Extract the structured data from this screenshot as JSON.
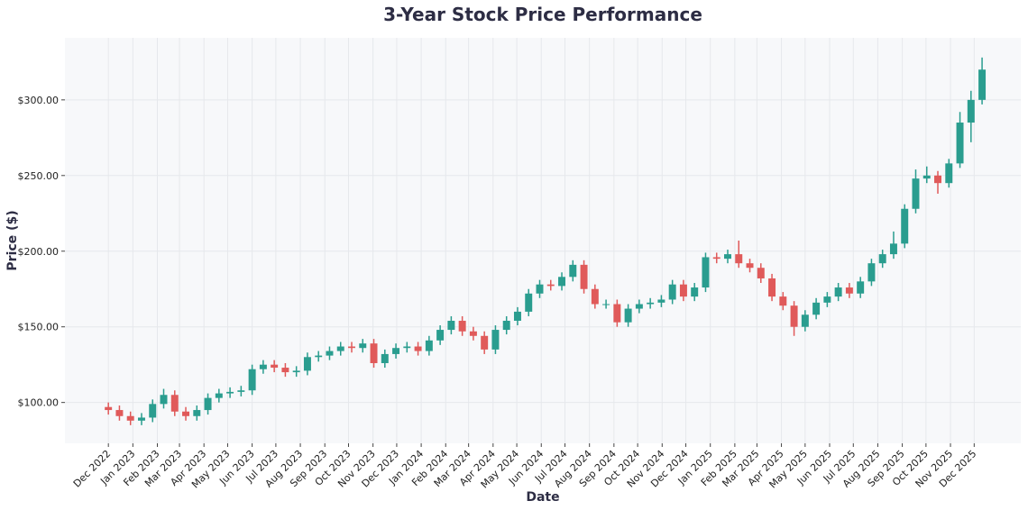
{
  "chart_data": {
    "type": "candlestick",
    "title": "3-Year Stock Price Performance",
    "xlabel": "Date",
    "ylabel": "Price ($)",
    "x": [
      0,
      14,
      28,
      42,
      56,
      70,
      84,
      98,
      112,
      126,
      140,
      154,
      168,
      182,
      196,
      210,
      224,
      238,
      252,
      266,
      280,
      294,
      308,
      322,
      336,
      350,
      364,
      378,
      392,
      406,
      420,
      434,
      448,
      462,
      476,
      490,
      504,
      518,
      532,
      546,
      560,
      574,
      588,
      602,
      616,
      630,
      644,
      658,
      672,
      686,
      700,
      714,
      728,
      742,
      756,
      770,
      784,
      798,
      812,
      826,
      840,
      854,
      868,
      882,
      896,
      910,
      924,
      938,
      952,
      966,
      980,
      994,
      1008,
      1022,
      1036,
      1050,
      1064,
      1078,
      1092,
      1106
    ],
    "open": [
      97,
      95,
      91,
      88,
      90,
      99,
      105,
      94,
      91,
      95,
      103,
      106,
      107,
      108,
      122,
      125,
      123,
      120,
      121,
      130,
      131,
      134,
      137,
      136,
      139,
      126,
      132,
      136,
      137,
      134,
      141,
      148,
      154,
      147,
      144,
      135,
      148,
      154,
      160,
      172,
      178,
      177,
      183,
      191,
      175,
      165,
      165,
      153,
      162,
      165,
      166,
      168,
      178,
      170,
      176,
      196,
      195,
      198,
      192,
      189,
      182,
      170,
      164,
      150,
      158,
      166,
      170,
      176,
      172,
      180,
      192,
      198,
      205,
      228,
      248,
      250,
      245,
      258,
      285,
      300
    ],
    "high": [
      100,
      98,
      94,
      93,
      102,
      109,
      108,
      97,
      98,
      106,
      109,
      110,
      111,
      125,
      128,
      128,
      126,
      124,
      133,
      134,
      137,
      140,
      140,
      142,
      142,
      135,
      139,
      140,
      140,
      144,
      151,
      157,
      157,
      150,
      147,
      151,
      157,
      163,
      175,
      181,
      181,
      186,
      194,
      194,
      178,
      168,
      168,
      165,
      168,
      169,
      171,
      181,
      181,
      179,
      199,
      199,
      201,
      207,
      195,
      192,
      185,
      173,
      167,
      161,
      169,
      173,
      179,
      179,
      183,
      195,
      201,
      213,
      231,
      254,
      256,
      253,
      261,
      292,
      306,
      328
    ],
    "low": [
      92,
      88,
      85,
      85,
      87,
      96,
      91,
      88,
      88,
      92,
      100,
      103,
      104,
      105,
      119,
      120,
      117,
      117,
      118,
      127,
      128,
      131,
      133,
      133,
      123,
      123,
      129,
      133,
      131,
      131,
      138,
      145,
      144,
      141,
      132,
      132,
      145,
      151,
      157,
      169,
      174,
      174,
      180,
      172,
      162,
      162,
      150,
      150,
      159,
      162,
      163,
      165,
      167,
      167,
      173,
      192,
      192,
      189,
      186,
      179,
      167,
      161,
      144,
      147,
      155,
      163,
      167,
      169,
      169,
      177,
      189,
      195,
      202,
      225,
      245,
      238,
      242,
      255,
      272,
      297
    ],
    "close": [
      95,
      91,
      88,
      90,
      99,
      105,
      94,
      91,
      95,
      103,
      106,
      107,
      108,
      122,
      125,
      123,
      120,
      121,
      130,
      131,
      134,
      137,
      136,
      139,
      126,
      132,
      136,
      137,
      134,
      141,
      148,
      154,
      147,
      144,
      135,
      148,
      154,
      160,
      172,
      178,
      177,
      183,
      191,
      175,
      165,
      165,
      153,
      162,
      165,
      166,
      168,
      178,
      170,
      176,
      196,
      195,
      198,
      192,
      189,
      182,
      170,
      164,
      150,
      158,
      166,
      170,
      176,
      172,
      180,
      192,
      198,
      205,
      228,
      248,
      250,
      245,
      258,
      285,
      300,
      320
    ],
    "up_color": "#2a9d8f",
    "down_color": "#e05a5a",
    "xlim": [
      -55,
      1155
    ],
    "ylim": [
      73,
      341
    ],
    "grid": true,
    "xticks": [
      {
        "value": 0,
        "label": "Dec 2022"
      },
      {
        "value": 31,
        "label": "Jan 2023"
      },
      {
        "value": 62,
        "label": "Feb 2023"
      },
      {
        "value": 90,
        "label": "Mar 2023"
      },
      {
        "value": 121,
        "label": "Apr 2023"
      },
      {
        "value": 151,
        "label": "May 2023"
      },
      {
        "value": 182,
        "label": "Jun 2023"
      },
      {
        "value": 212,
        "label": "Jul 2023"
      },
      {
        "value": 243,
        "label": "Aug 2023"
      },
      {
        "value": 274,
        "label": "Sep 2023"
      },
      {
        "value": 304,
        "label": "Oct 2023"
      },
      {
        "value": 335,
        "label": "Nov 2023"
      },
      {
        "value": 365,
        "label": "Dec 2023"
      },
      {
        "value": 396,
        "label": "Jan 2024"
      },
      {
        "value": 427,
        "label": "Feb 2024"
      },
      {
        "value": 456,
        "label": "Mar 2024"
      },
      {
        "value": 487,
        "label": "Apr 2024"
      },
      {
        "value": 517,
        "label": "May 2024"
      },
      {
        "value": 548,
        "label": "Jun 2024"
      },
      {
        "value": 578,
        "label": "Jul 2024"
      },
      {
        "value": 609,
        "label": "Aug 2024"
      },
      {
        "value": 640,
        "label": "Sep 2024"
      },
      {
        "value": 670,
        "label": "Oct 2024"
      },
      {
        "value": 701,
        "label": "Nov 2024"
      },
      {
        "value": 731,
        "label": "Dec 2024"
      },
      {
        "value": 762,
        "label": "Jan 2025"
      },
      {
        "value": 793,
        "label": "Feb 2025"
      },
      {
        "value": 821,
        "label": "Mar 2025"
      },
      {
        "value": 852,
        "label": "Apr 2025"
      },
      {
        "value": 882,
        "label": "May 2025"
      },
      {
        "value": 913,
        "label": "Jun 2025"
      },
      {
        "value": 943,
        "label": "Jul 2025"
      },
      {
        "value": 974,
        "label": "Aug 2025"
      },
      {
        "value": 1005,
        "label": "Sep 2025"
      },
      {
        "value": 1035,
        "label": "Oct 2025"
      },
      {
        "value": 1066,
        "label": "Nov 2025"
      },
      {
        "value": 1096,
        "label": "Dec 2025"
      }
    ],
    "yticks": [
      {
        "value": 100,
        "label": "$100.00"
      },
      {
        "value": 150,
        "label": "$150.00"
      },
      {
        "value": 200,
        "label": "$200.00"
      },
      {
        "value": 250,
        "label": "$250.00"
      },
      {
        "value": 300,
        "label": "$300.00"
      }
    ]
  }
}
